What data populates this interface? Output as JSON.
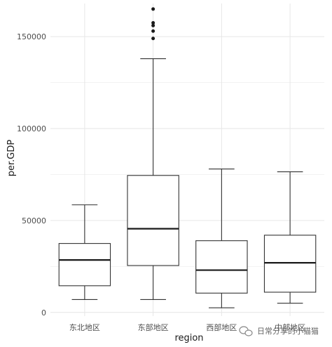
{
  "chart_data": {
    "type": "boxplot",
    "title": "",
    "xlabel": "region",
    "ylabel": "per.GDP",
    "ylim": [
      -2000,
      168000
    ],
    "y_ticks": [
      0,
      50000,
      100000,
      150000
    ],
    "y_tick_labels": [
      "0",
      "50000",
      "100000",
      "150000"
    ],
    "grid": true,
    "categories": [
      "东北地区",
      "东部地区",
      "西部地区",
      "中部地区"
    ],
    "boxes": [
      {
        "category": "东北地区",
        "whisker_low": 7000,
        "q1": 14500,
        "median": 28500,
        "q3": 37500,
        "whisker_high": 58500,
        "outliers": []
      },
      {
        "category": "东部地区",
        "whisker_low": 7000,
        "q1": 25500,
        "median": 45500,
        "q3": 74500,
        "whisker_high": 138000,
        "outliers": [
          149000,
          153000,
          156000,
          157500,
          165000
        ]
      },
      {
        "category": "西部地区",
        "whisker_low": 2500,
        "q1": 10500,
        "median": 23000,
        "q3": 39000,
        "whisker_high": 78000,
        "outliers": []
      },
      {
        "category": "中部地区",
        "whisker_low": 5000,
        "q1": 11000,
        "median": 27000,
        "q3": 42000,
        "whisker_high": 76500,
        "outliers": []
      }
    ]
  },
  "watermark": {
    "icon": "wechat-icon",
    "text": "日常分享的小猫猫"
  }
}
